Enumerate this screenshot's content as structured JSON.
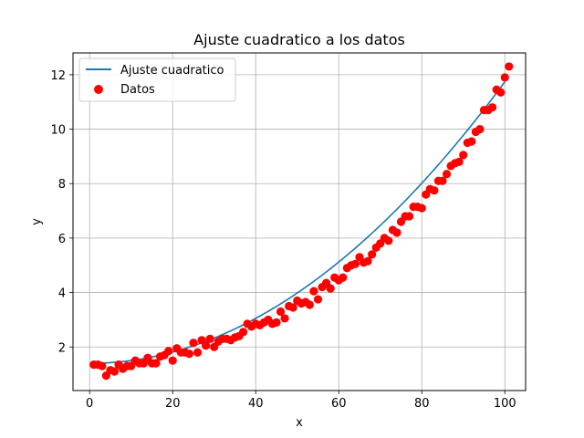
{
  "chart_data": {
    "type": "scatter",
    "title": "Ajuste cuadratico a los datos",
    "xlabel": "x",
    "ylabel": "y",
    "xlim": [
      -4.0,
      105.0
    ],
    "ylim": [
      0.4,
      12.8
    ],
    "x_ticks": [
      0,
      20,
      40,
      60,
      80,
      100
    ],
    "y_ticks": [
      2,
      4,
      6,
      8,
      10,
      12
    ],
    "grid": true,
    "legend_position": "top-left",
    "series": [
      {
        "name": "Ajuste cuadratico",
        "kind": "line",
        "color": "#1f77b4",
        "coefficients": {
          "a": 0.001035,
          "b": -0.0001,
          "c": 1.4
        },
        "x_range": [
          1,
          100
        ]
      },
      {
        "name": "Datos",
        "kind": "scatter",
        "color": "#ff0000",
        "points": [
          [
            1,
            1.35
          ],
          [
            2,
            1.35
          ],
          [
            3,
            1.3
          ],
          [
            4,
            0.95
          ],
          [
            5,
            1.15
          ],
          [
            6,
            1.1
          ],
          [
            7,
            1.35
          ],
          [
            8,
            1.2
          ],
          [
            9,
            1.3
          ],
          [
            10,
            1.3
          ],
          [
            11,
            1.5
          ],
          [
            12,
            1.4
          ],
          [
            13,
            1.4
          ],
          [
            14,
            1.6
          ],
          [
            15,
            1.4
          ],
          [
            16,
            1.4
          ],
          [
            17,
            1.65
          ],
          [
            18,
            1.7
          ],
          [
            19,
            1.85
          ],
          [
            20,
            1.5
          ],
          [
            21,
            1.95
          ],
          [
            22,
            1.8
          ],
          [
            23,
            1.8
          ],
          [
            24,
            1.75
          ],
          [
            25,
            2.15
          ],
          [
            26,
            1.8
          ],
          [
            27,
            2.25
          ],
          [
            28,
            2.05
          ],
          [
            29,
            2.3
          ],
          [
            30,
            2.0
          ],
          [
            31,
            2.2
          ],
          [
            32,
            2.3
          ],
          [
            33,
            2.3
          ],
          [
            34,
            2.25
          ],
          [
            35,
            2.35
          ],
          [
            36,
            2.4
          ],
          [
            37,
            2.55
          ],
          [
            38,
            2.85
          ],
          [
            39,
            2.75
          ],
          [
            40,
            2.85
          ],
          [
            41,
            2.8
          ],
          [
            42,
            2.9
          ],
          [
            43,
            3.0
          ],
          [
            44,
            2.85
          ],
          [
            45,
            2.9
          ],
          [
            46,
            3.3
          ],
          [
            47,
            3.05
          ],
          [
            48,
            3.5
          ],
          [
            49,
            3.45
          ],
          [
            50,
            3.7
          ],
          [
            51,
            3.6
          ],
          [
            52,
            3.65
          ],
          [
            53,
            3.55
          ],
          [
            54,
            4.05
          ],
          [
            55,
            3.75
          ],
          [
            56,
            4.2
          ],
          [
            57,
            4.35
          ],
          [
            58,
            4.15
          ],
          [
            59,
            4.55
          ],
          [
            60,
            4.45
          ],
          [
            61,
            4.55
          ],
          [
            62,
            4.9
          ],
          [
            63,
            5.0
          ],
          [
            64,
            5.05
          ],
          [
            65,
            5.3
          ],
          [
            66,
            5.1
          ],
          [
            67,
            5.15
          ],
          [
            68,
            5.4
          ],
          [
            69,
            5.65
          ],
          [
            70,
            5.8
          ],
          [
            71,
            6.0
          ],
          [
            72,
            5.9
          ],
          [
            73,
            6.3
          ],
          [
            74,
            6.2
          ],
          [
            75,
            6.6
          ],
          [
            76,
            6.8
          ],
          [
            77,
            6.8
          ],
          [
            78,
            7.15
          ],
          [
            79,
            7.15
          ],
          [
            80,
            7.1
          ],
          [
            81,
            7.6
          ],
          [
            82,
            7.8
          ],
          [
            83,
            7.75
          ],
          [
            84,
            8.1
          ],
          [
            85,
            8.1
          ],
          [
            86,
            8.35
          ],
          [
            87,
            8.65
          ],
          [
            88,
            8.75
          ],
          [
            89,
            8.8
          ],
          [
            90,
            9.05
          ],
          [
            91,
            9.5
          ],
          [
            92,
            9.55
          ],
          [
            93,
            9.9
          ],
          [
            94,
            10.0
          ],
          [
            95,
            10.7
          ],
          [
            96,
            10.7
          ],
          [
            97,
            10.8
          ],
          [
            98,
            11.45
          ],
          [
            99,
            11.35
          ],
          [
            100,
            11.9
          ],
          [
            101,
            12.3
          ]
        ]
      }
    ]
  }
}
